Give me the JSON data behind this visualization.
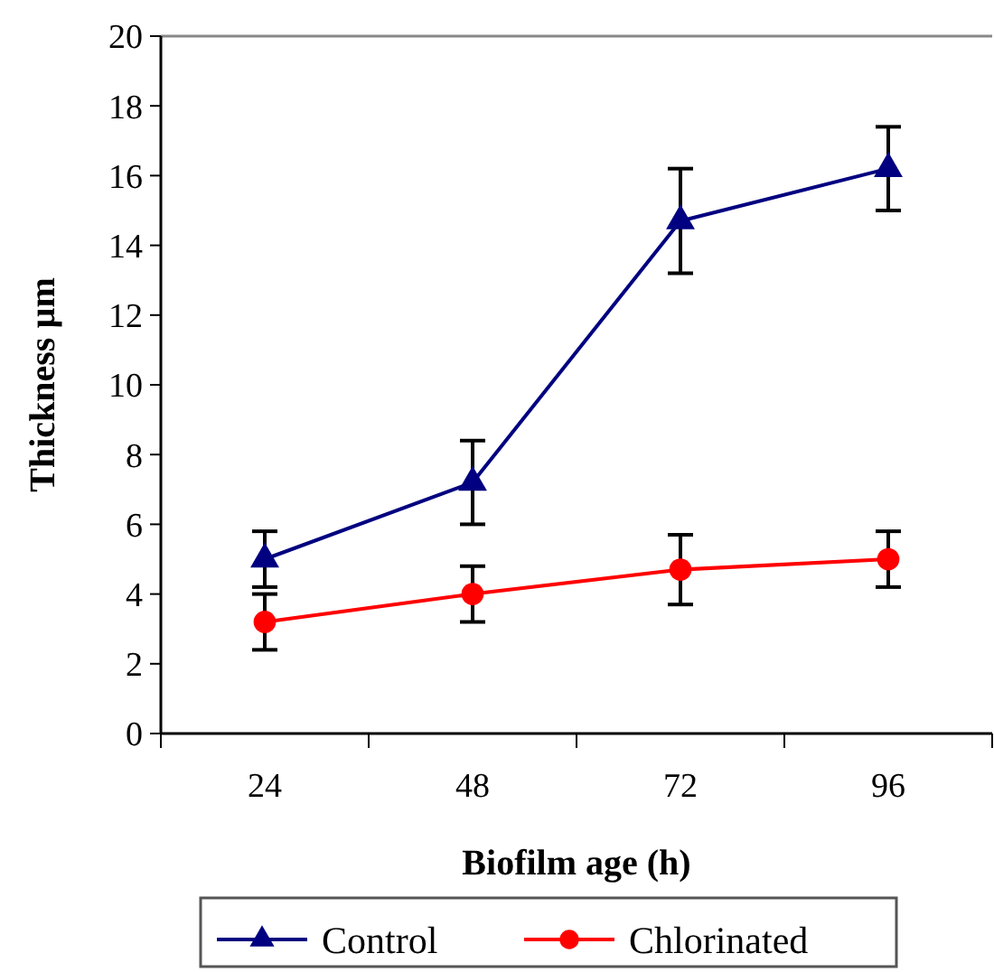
{
  "chart_data": {
    "type": "line",
    "xlabel": "Biofilm age (h)",
    "ylabel": "Thickness µm",
    "categories": [
      "24",
      "48",
      "72",
      "96"
    ],
    "ylim": [
      0,
      20
    ],
    "yticks": [
      0,
      2,
      4,
      6,
      8,
      10,
      12,
      14,
      16,
      18,
      20
    ],
    "grid": false,
    "legend": "bottom",
    "series": [
      {
        "name": "Control",
        "color": "#000080",
        "marker": "triangle",
        "values": [
          5.0,
          7.2,
          14.7,
          16.2
        ],
        "errors": [
          0.8,
          1.2,
          1.5,
          1.2
        ]
      },
      {
        "name": "Chlorinated",
        "color": "#ff0000",
        "marker": "circle",
        "values": [
          3.2,
          4.0,
          4.7,
          5.0
        ],
        "errors": [
          0.8,
          0.8,
          1.0,
          0.8
        ]
      }
    ]
  }
}
